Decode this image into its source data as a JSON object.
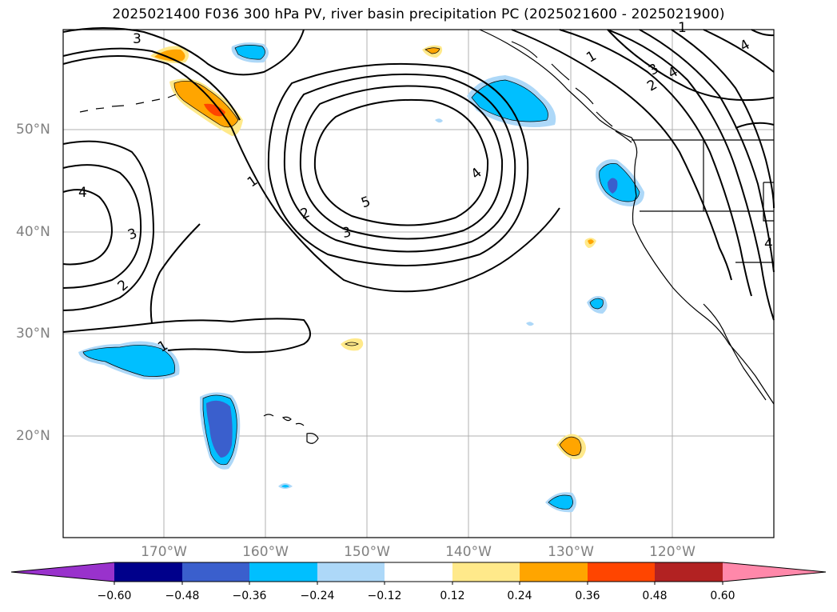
{
  "title": "2025021400 F036 300 hPa PV, river basin precipitation PC (2025021600 - 2025021900)",
  "map": {
    "lat_labels": [
      "50°N",
      "40°N",
      "30°N",
      "20°N"
    ],
    "lon_labels": [
      "170°W",
      "160°W",
      "150°W",
      "140°W",
      "130°W",
      "120°W"
    ],
    "contour_labels": [
      "3",
      "1",
      "2",
      "3",
      "5",
      "4",
      "4",
      "3",
      "2",
      "1",
      "1",
      "3",
      "4",
      "2",
      "1",
      "4",
      "4"
    ],
    "contour_color": "#000000",
    "coastline_color": "#000000",
    "grid_color": "#b0b0b0"
  },
  "colorbar": {
    "ticks": [
      "−0.60",
      "−0.48",
      "−0.36",
      "−0.24",
      "−0.12",
      "0.12",
      "0.24",
      "0.36",
      "0.48",
      "0.60"
    ],
    "colors": [
      "#9932cc",
      "#00008b",
      "#3a5fcd",
      "#00bfff",
      "#add8f8",
      "#ffffff",
      "#ffe98a",
      "#ffa500",
      "#ff4500",
      "#b22222",
      "#ff88aa"
    ]
  }
}
